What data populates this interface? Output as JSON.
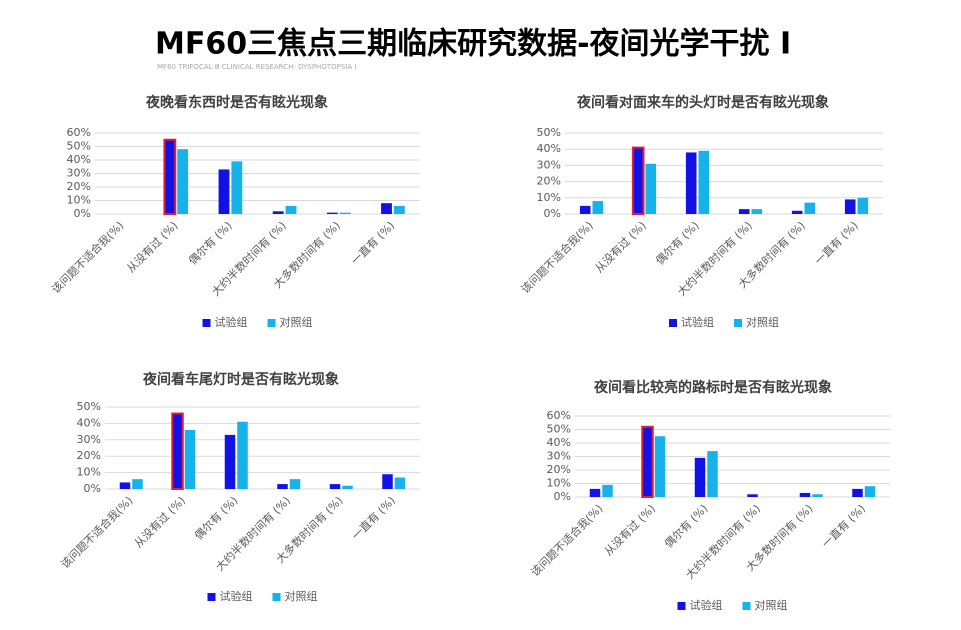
{
  "title": "MF60三焦点三期临床研究数据-夜间光学干扰 Ⅰ",
  "subtitle": "MF60 TRIFOCAL Ⅲ CLINICAL RESEARCH- DYSPHOTOPSIA Ⅰ",
  "chart_data": [
    {
      "type": "bar",
      "title": "夜晚看东西时是否有眩光现象",
      "categories": [
        "该问题不适合我(%)",
        "从没有过 (%)",
        "偶尔有 (%)",
        "大约半数时间有 (%)",
        "大多数时间有  (%)",
        "一直有 (%)"
      ],
      "series": [
        {
          "name": "试验组",
          "color": "#1212e6",
          "values": [
            0,
            55,
            33,
            2,
            1,
            8
          ]
        },
        {
          "name": "对照组",
          "color": "#17b2ea",
          "values": [
            0,
            48,
            39,
            6,
            1,
            6
          ]
        }
      ],
      "ylim": [
        0,
        60
      ],
      "yticks": [
        {
          "value": 0,
          "label": "0%"
        },
        {
          "value": 10,
          "label": "10%"
        },
        {
          "value": 20,
          "label": "20%"
        },
        {
          "value": 30,
          "label": "30%"
        },
        {
          "value": 40,
          "label": "40%"
        },
        {
          "value": 50,
          "label": "50%"
        },
        {
          "value": 60,
          "label": "60%"
        }
      ],
      "grid": true,
      "highlight_index": 1,
      "highlight_color": "#e02030",
      "legend": "bottom"
    },
    {
      "type": "bar",
      "title": "夜间看对面来车的头灯时是否有眩光现象",
      "categories": [
        "该问题不适合我(%)",
        "从没有过 (%)",
        "偶尔有 (%)",
        "大约半数时间有 (%)",
        "大多数时间有 (%)",
        "一直有 (%)"
      ],
      "series": [
        {
          "name": "试验组",
          "color": "#1212e6",
          "values": [
            5,
            41,
            38,
            3,
            2,
            9
          ]
        },
        {
          "name": "对照组",
          "color": "#17b2ea",
          "values": [
            8,
            31,
            39,
            3,
            7,
            10
          ]
        }
      ],
      "ylim": [
        0,
        50
      ],
      "yticks": [
        {
          "value": 0,
          "label": "0%"
        },
        {
          "value": 10,
          "label": "10%"
        },
        {
          "value": 20,
          "label": "20%"
        },
        {
          "value": 30,
          "label": "30%"
        },
        {
          "value": 40,
          "label": "40%"
        },
        {
          "value": 50,
          "label": "50%"
        }
      ],
      "grid": true,
      "highlight_index": 1,
      "highlight_color": "#e02030",
      "legend": "bottom"
    },
    {
      "type": "bar",
      "title": "夜间看车尾灯时是否有眩光现象",
      "categories": [
        "该问题不适合我(%)",
        "从没有过 (%)",
        "偶尔有 (%)",
        "大约半数时间有 (%)",
        "大多数时间有 (%)",
        "一直有 (%)"
      ],
      "series": [
        {
          "name": "试验组",
          "color": "#1212e6",
          "values": [
            4,
            46,
            33,
            3,
            3,
            9
          ]
        },
        {
          "name": "对照组",
          "color": "#17b2ea",
          "values": [
            6,
            36,
            41,
            6,
            2,
            7
          ]
        }
      ],
      "ylim": [
        0,
        50
      ],
      "yticks": [
        {
          "value": 0,
          "label": "0%"
        },
        {
          "value": 10,
          "label": "10%"
        },
        {
          "value": 20,
          "label": "20%"
        },
        {
          "value": 30,
          "label": "30%"
        },
        {
          "value": 40,
          "label": "40%"
        },
        {
          "value": 50,
          "label": "50%"
        }
      ],
      "grid": true,
      "highlight_index": 1,
      "highlight_color": "#e02030",
      "legend": "bottom"
    },
    {
      "type": "bar",
      "title": "夜间看比较亮的路标时是否有眩光现象",
      "categories": [
        "该问题不适合我(%)",
        "从没有过 (%)",
        "偶尔有 (%)",
        "大约半数时间有 (%)",
        "大多数时间有 (%)",
        "一直有 (%)"
      ],
      "series": [
        {
          "name": "试验组",
          "color": "#1212e6",
          "values": [
            6,
            52,
            29,
            2,
            3,
            6
          ]
        },
        {
          "name": "对照组",
          "color": "#17b2ea",
          "values": [
            9,
            45,
            34,
            0,
            2,
            8
          ]
        }
      ],
      "ylim": [
        0,
        60
      ],
      "yticks": [
        {
          "value": 0,
          "label": "0%"
        },
        {
          "value": 10,
          "label": "10%"
        },
        {
          "value": 20,
          "label": "20%"
        },
        {
          "value": 30,
          "label": "30%"
        },
        {
          "value": 40,
          "label": "40%"
        },
        {
          "value": 50,
          "label": "50%"
        },
        {
          "value": 60,
          "label": "60%"
        }
      ],
      "grid": true,
      "highlight_index": 1,
      "highlight_color": "#e02030",
      "legend": "bottom"
    }
  ]
}
